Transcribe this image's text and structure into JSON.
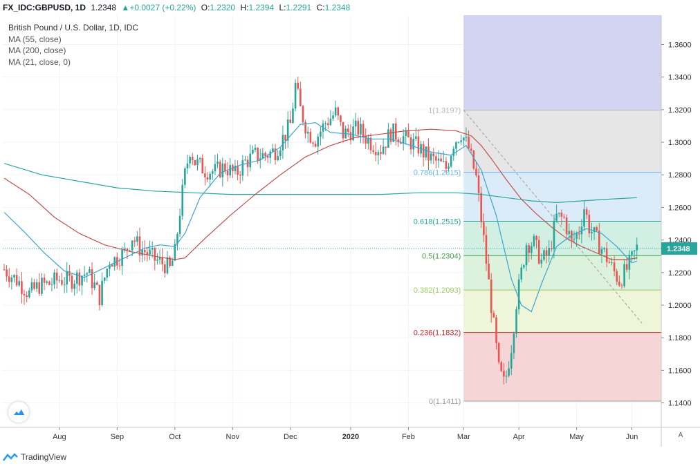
{
  "header": {
    "symbol": "FX_IDC:GBPUSD, 1D",
    "last": "1.2348",
    "change": "+0.0027 (+0.22%)",
    "open_label": "O:",
    "open": "1.2320",
    "high_label": "H:",
    "high": "1.2394",
    "low_label": "L:",
    "low": "1.2291",
    "close_label": "C:",
    "close": "1.2348"
  },
  "legend": {
    "title": "British Pound / U.S. Dollar, 1D, IDC",
    "ma1": "MA (55, close)",
    "ma2": "MA (200, close)",
    "ma3": "MA (21, close, 0)"
  },
  "footer": {
    "brand": "TradingView",
    "auto": "A"
  },
  "colors": {
    "up": "#26a69a",
    "down": "#ef5350",
    "ma55": "#c0504d",
    "ma200": "#26a69a",
    "ma21": "#3ba3d0",
    "price_tag": "#26a69a"
  },
  "chart_data": {
    "type": "candlestick",
    "title": "British Pound / U.S. Dollar, 1D, IDC",
    "ylim": [
      1.125,
      1.378
    ],
    "y_ticks": [
      "1.3600",
      "1.3400",
      "1.3200",
      "1.3000",
      "1.2800",
      "1.2600",
      "1.2400",
      "1.2200",
      "1.2000",
      "1.1800",
      "1.1600",
      "1.1400"
    ],
    "y_tick_values": [
      1.36,
      1.34,
      1.32,
      1.3,
      1.28,
      1.26,
      1.24,
      1.22,
      1.2,
      1.18,
      1.16,
      1.14
    ],
    "x_ticks": [
      "Aug",
      "Sep",
      "Oct",
      "Nov",
      "Dec",
      "2020",
      "Feb",
      "Mar",
      "Apr",
      "May",
      "Jun"
    ],
    "x_tick_index": [
      22,
      45,
      68,
      91,
      114,
      138,
      161,
      183,
      205,
      228,
      250
    ],
    "last_price_tag": "1.2348",
    "last_price": 1.2348,
    "anchors": [
      [
        0,
        1.222
      ],
      [
        6,
        1.214
      ],
      [
        10,
        1.207
      ],
      [
        14,
        1.212
      ],
      [
        18,
        1.213
      ],
      [
        22,
        1.216
      ],
      [
        26,
        1.215
      ],
      [
        30,
        1.218
      ],
      [
        33,
        1.22
      ],
      [
        36,
        1.212
      ],
      [
        38,
        1.205
      ],
      [
        40,
        1.217
      ],
      [
        42,
        1.228
      ],
      [
        44,
        1.228
      ],
      [
        48,
        1.232
      ],
      [
        51,
        1.242
      ],
      [
        54,
        1.235
      ],
      [
        57,
        1.232
      ],
      [
        60,
        1.228
      ],
      [
        64,
        1.225
      ],
      [
        66,
        1.222
      ],
      [
        68,
        1.232
      ],
      [
        70,
        1.258
      ],
      [
        72,
        1.28
      ],
      [
        74,
        1.296
      ],
      [
        76,
        1.288
      ],
      [
        80,
        1.283
      ],
      [
        84,
        1.282
      ],
      [
        88,
        1.285
      ],
      [
        92,
        1.28
      ],
      [
        96,
        1.288
      ],
      [
        100,
        1.292
      ],
      [
        104,
        1.292
      ],
      [
        108,
        1.295
      ],
      [
        112,
        1.305
      ],
      [
        114,
        1.311
      ],
      [
        116,
        1.335
      ],
      [
        118,
        1.32
      ],
      [
        121,
        1.306
      ],
      [
        124,
        1.302
      ],
      [
        128,
        1.312
      ],
      [
        132,
        1.318
      ],
      [
        135,
        1.305
      ],
      [
        138,
        1.307
      ],
      [
        141,
        1.308
      ],
      [
        146,
        1.3
      ],
      [
        150,
        1.296
      ],
      [
        154,
        1.306
      ],
      [
        158,
        1.304
      ],
      [
        162,
        1.3
      ],
      [
        165,
        1.297
      ],
      [
        168,
        1.292
      ],
      [
        172,
        1.288
      ],
      [
        176,
        1.284
      ],
      [
        179,
        1.3
      ],
      [
        182,
        1.306
      ],
      [
        185,
        1.296
      ],
      [
        188,
        1.278
      ],
      [
        191,
        1.24
      ],
      [
        194,
        1.2
      ],
      [
        197,
        1.16
      ],
      [
        199,
        1.152
      ],
      [
        200,
        1.157
      ],
      [
        202,
        1.175
      ],
      [
        204,
        1.202
      ],
      [
        206,
        1.22
      ],
      [
        208,
        1.238
      ],
      [
        211,
        1.238
      ],
      [
        214,
        1.227
      ],
      [
        217,
        1.232
      ],
      [
        220,
        1.254
      ],
      [
        223,
        1.253
      ],
      [
        226,
        1.238
      ],
      [
        229,
        1.246
      ],
      [
        231,
        1.26
      ],
      [
        233,
        1.248
      ],
      [
        236,
        1.24
      ],
      [
        239,
        1.232
      ],
      [
        242,
        1.223
      ],
      [
        245,
        1.215
      ],
      [
        248,
        1.222
      ],
      [
        250,
        1.228
      ],
      [
        252,
        1.235
      ]
    ],
    "ma55": [
      [
        0,
        1.278
      ],
      [
        10,
        1.268
      ],
      [
        20,
        1.254
      ],
      [
        30,
        1.244
      ],
      [
        40,
        1.237
      ],
      [
        50,
        1.233
      ],
      [
        60,
        1.23
      ],
      [
        68,
        1.228
      ],
      [
        72,
        1.229
      ],
      [
        80,
        1.241
      ],
      [
        90,
        1.255
      ],
      [
        100,
        1.268
      ],
      [
        110,
        1.28
      ],
      [
        120,
        1.291
      ],
      [
        130,
        1.298
      ],
      [
        140,
        1.303
      ],
      [
        150,
        1.305
      ],
      [
        160,
        1.307
      ],
      [
        170,
        1.308
      ],
      [
        180,
        1.307
      ],
      [
        186,
        1.304
      ],
      [
        190,
        1.298
      ],
      [
        194,
        1.29
      ],
      [
        200,
        1.277
      ],
      [
        206,
        1.265
      ],
      [
        212,
        1.256
      ],
      [
        218,
        1.248
      ],
      [
        224,
        1.241
      ],
      [
        230,
        1.236
      ],
      [
        236,
        1.232
      ],
      [
        242,
        1.228
      ],
      [
        248,
        1.228
      ],
      [
        252,
        1.229
      ]
    ],
    "ma200": [
      [
        0,
        1.287
      ],
      [
        15,
        1.28
      ],
      [
        30,
        1.276
      ],
      [
        45,
        1.272
      ],
      [
        60,
        1.27
      ],
      [
        75,
        1.269
      ],
      [
        90,
        1.268
      ],
      [
        105,
        1.268
      ],
      [
        120,
        1.268
      ],
      [
        135,
        1.268
      ],
      [
        150,
        1.268
      ],
      [
        165,
        1.269
      ],
      [
        180,
        1.269
      ],
      [
        190,
        1.268
      ],
      [
        200,
        1.266
      ],
      [
        210,
        1.264
      ],
      [
        220,
        1.263
      ],
      [
        230,
        1.264
      ],
      [
        240,
        1.265
      ],
      [
        252,
        1.266
      ]
    ],
    "ma21": [
      [
        0,
        1.257
      ],
      [
        8,
        1.245
      ],
      [
        16,
        1.232
      ],
      [
        24,
        1.221
      ],
      [
        32,
        1.217
      ],
      [
        40,
        1.223
      ],
      [
        48,
        1.229
      ],
      [
        56,
        1.235
      ],
      [
        62,
        1.237
      ],
      [
        68,
        1.236
      ],
      [
        72,
        1.244
      ],
      [
        78,
        1.266
      ],
      [
        86,
        1.281
      ],
      [
        94,
        1.286
      ],
      [
        102,
        1.289
      ],
      [
        110,
        1.297
      ],
      [
        118,
        1.311
      ],
      [
        124,
        1.312
      ],
      [
        130,
        1.306
      ],
      [
        138,
        1.305
      ],
      [
        146,
        1.302
      ],
      [
        154,
        1.302
      ],
      [
        162,
        1.298
      ],
      [
        170,
        1.294
      ],
      [
        178,
        1.292
      ],
      [
        184,
        1.298
      ],
      [
        190,
        1.283
      ],
      [
        196,
        1.255
      ],
      [
        202,
        1.216
      ],
      [
        206,
        1.2
      ],
      [
        210,
        1.196
      ],
      [
        214,
        1.213
      ],
      [
        220,
        1.236
      ],
      [
        226,
        1.243
      ],
      [
        232,
        1.247
      ],
      [
        238,
        1.244
      ],
      [
        244,
        1.236
      ],
      [
        250,
        1.226
      ],
      [
        252,
        1.227
      ]
    ],
    "fibonacci": {
      "high": 1.3197,
      "low": 1.1411,
      "levels": [
        {
          "ratio": "1",
          "value": 1.3197,
          "label": "1(1.3197)",
          "color": "#b8b8b8",
          "fill": "#e6e6e6"
        },
        {
          "ratio": "0.786",
          "value": 1.2815,
          "label": "0.786(1.2815)",
          "color": "#64b5f6",
          "fill": "#dcebf8"
        },
        {
          "ratio": "0.618",
          "value": 1.2515,
          "label": "0.618(1.2515)",
          "color": "#26a69a",
          "fill": "#d2efe4"
        },
        {
          "ratio": "0.5",
          "value": 1.2304,
          "label": "0.5(1.2304)",
          "color": "#43a047",
          "fill": "#dcf2dc"
        },
        {
          "ratio": "0.382",
          "value": 1.2093,
          "label": "0.382(1.2093)",
          "color": "#9ccc65",
          "fill": "#eef5d8"
        },
        {
          "ratio": "0.236",
          "value": 1.1832,
          "label": "0.236(1.1832)",
          "color": "#c62828",
          "fill": "#f5d5d5"
        },
        {
          "ratio": "0",
          "value": 1.1411,
          "label": "0(1.1411)",
          "color": "#9e9e9e",
          "fill": ""
        }
      ],
      "start_index": 183,
      "top_fill": "#d3d3f2"
    },
    "trendline": {
      "start": [
        183,
        1.3197
      ],
      "end": [
        254,
        1.189
      ]
    }
  }
}
